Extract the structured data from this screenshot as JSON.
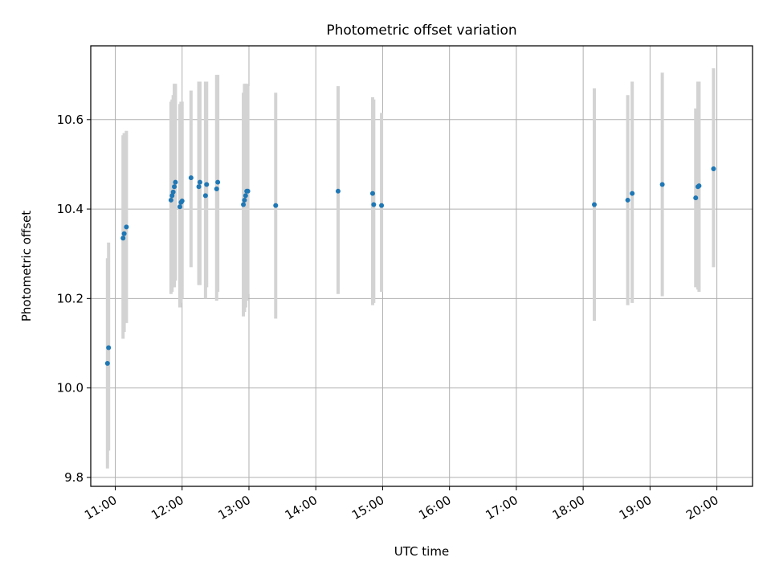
{
  "chart_data": {
    "type": "scatter",
    "title": "Photometric offset variation",
    "xlabel": "UTC time",
    "ylabel": "Photometric offset",
    "x_ticks": [
      "11:00",
      "12:00",
      "13:00",
      "14:00",
      "15:00",
      "16:00",
      "17:00",
      "18:00",
      "19:00",
      "20:00"
    ],
    "y_ticks": [
      "9.8",
      "10.0",
      "10.2",
      "10.4",
      "10.6"
    ],
    "xlim": [
      "10:38",
      "20:32"
    ],
    "ylim": [
      9.78,
      10.765
    ],
    "grid": true,
    "colors": {
      "point": "#1f77b4",
      "errorbar": "#d3d3d3",
      "grid": "#b0b0b0"
    },
    "series": [
      {
        "points": [
          {
            "x": "10:53",
            "y": 10.055,
            "lo": 9.82,
            "hi": 10.29
          },
          {
            "x": "10:54",
            "y": 10.09,
            "lo": 9.86,
            "hi": 10.325
          },
          {
            "x": "11:07",
            "y": 10.335,
            "lo": 10.11,
            "hi": 10.565
          },
          {
            "x": "11:08",
            "y": 10.345,
            "lo": 10.125,
            "hi": 10.57
          },
          {
            "x": "11:10",
            "y": 10.36,
            "lo": 10.145,
            "hi": 10.575
          },
          {
            "x": "11:50",
            "y": 10.42,
            "lo": 10.21,
            "hi": 10.64
          },
          {
            "x": "11:51",
            "y": 10.43,
            "lo": 10.215,
            "hi": 10.645
          },
          {
            "x": "11:52",
            "y": 10.438,
            "lo": 10.225,
            "hi": 10.655
          },
          {
            "x": "11:53",
            "y": 10.45,
            "lo": 10.225,
            "hi": 10.68
          },
          {
            "x": "11:54",
            "y": 10.46,
            "lo": 10.24,
            "hi": 10.68
          },
          {
            "x": "11:58",
            "y": 10.405,
            "lo": 10.18,
            "hi": 10.635
          },
          {
            "x": "11:59",
            "y": 10.415,
            "lo": 10.19,
            "hi": 10.64
          },
          {
            "x": "12:00",
            "y": 10.418,
            "lo": 10.2,
            "hi": 10.64
          },
          {
            "x": "12:08",
            "y": 10.47,
            "lo": 10.27,
            "hi": 10.665
          },
          {
            "x": "12:15",
            "y": 10.45,
            "lo": 10.23,
            "hi": 10.685
          },
          {
            "x": "12:16",
            "y": 10.46,
            "lo": 10.23,
            "hi": 10.685
          },
          {
            "x": "12:21",
            "y": 10.43,
            "lo": 10.2,
            "hi": 10.685
          },
          {
            "x": "12:22",
            "y": 10.455,
            "lo": 10.225,
            "hi": 10.685
          },
          {
            "x": "12:31",
            "y": 10.445,
            "lo": 10.195,
            "hi": 10.7
          },
          {
            "x": "12:32",
            "y": 10.46,
            "lo": 10.215,
            "hi": 10.7
          },
          {
            "x": "12:55",
            "y": 10.41,
            "lo": 10.16,
            "hi": 10.66
          },
          {
            "x": "12:56",
            "y": 10.42,
            "lo": 10.17,
            "hi": 10.68
          },
          {
            "x": "12:57",
            "y": 10.43,
            "lo": 10.18,
            "hi": 10.68
          },
          {
            "x": "12:58",
            "y": 10.44,
            "lo": 10.195,
            "hi": 10.68
          },
          {
            "x": "12:59",
            "y": 10.44,
            "lo": 10.21,
            "hi": 10.675
          },
          {
            "x": "13:24",
            "y": 10.408,
            "lo": 10.155,
            "hi": 10.66
          },
          {
            "x": "14:20",
            "y": 10.44,
            "lo": 10.21,
            "hi": 10.675
          },
          {
            "x": "14:51",
            "y": 10.435,
            "lo": 10.185,
            "hi": 10.65
          },
          {
            "x": "14:52",
            "y": 10.41,
            "lo": 10.19,
            "hi": 10.645
          },
          {
            "x": "14:59",
            "y": 10.408,
            "lo": 10.215,
            "hi": 10.615
          },
          {
            "x": "18:10",
            "y": 10.41,
            "lo": 10.15,
            "hi": 10.67
          },
          {
            "x": "18:40",
            "y": 10.42,
            "lo": 10.185,
            "hi": 10.655
          },
          {
            "x": "18:44",
            "y": 10.435,
            "lo": 10.19,
            "hi": 10.685
          },
          {
            "x": "19:11",
            "y": 10.455,
            "lo": 10.205,
            "hi": 10.705
          },
          {
            "x": "19:41",
            "y": 10.425,
            "lo": 10.225,
            "hi": 10.625
          },
          {
            "x": "19:43",
            "y": 10.45,
            "lo": 10.22,
            "hi": 10.685
          },
          {
            "x": "19:44",
            "y": 10.452,
            "lo": 10.215,
            "hi": 10.685
          },
          {
            "x": "19:57",
            "y": 10.49,
            "lo": 10.27,
            "hi": 10.715
          }
        ]
      }
    ]
  }
}
